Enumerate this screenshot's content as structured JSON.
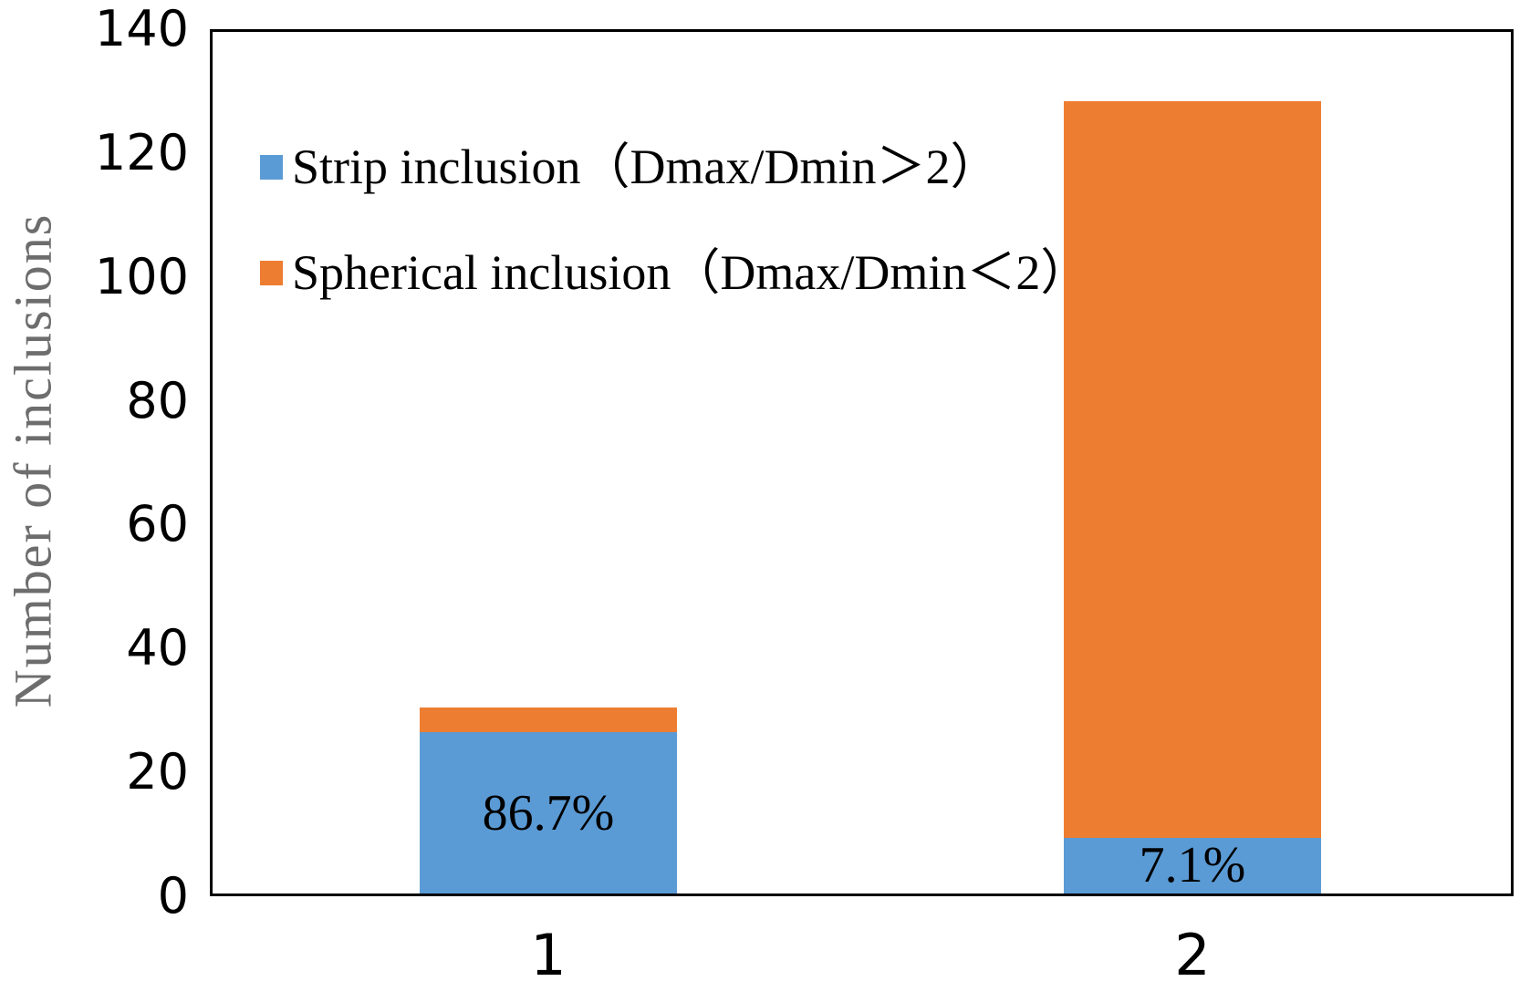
{
  "colors": {
    "series_blue": "#5B9BD5",
    "series_orange": "#ED7D31",
    "axis_line": "#000000",
    "y_title_gray": "#6d6d6d",
    "background": "#ffffff"
  },
  "y_axis": {
    "title": "Number of inclusions",
    "ticks": [
      "0",
      "20",
      "40",
      "60",
      "80",
      "100",
      "120",
      "140"
    ],
    "min": 0,
    "max": 140
  },
  "x_axis": {
    "categories": [
      "1",
      "2"
    ]
  },
  "legend": [
    {
      "label": "Strip inclusion（Dmax/Dmin＞2）",
      "color": "#5B9BD5",
      "marker": "square-icon"
    },
    {
      "label": "Spherical inclusion（Dmax/Dmin＜2）",
      "color": "#ED7D31",
      "marker": "square-icon"
    }
  ],
  "chart_data": {
    "type": "bar",
    "stacked": true,
    "categories": [
      "1",
      "2"
    ],
    "series": [
      {
        "name": "Strip inclusion（Dmax/Dmin＞2）",
        "color": "#5B9BD5",
        "values": [
          26,
          9
        ]
      },
      {
        "name": "Spherical inclusion（Dmax/Dmin＜2）",
        "color": "#ED7D31",
        "values": [
          4,
          119
        ]
      }
    ],
    "stack_totals": [
      30,
      128
    ],
    "bar_labels": [
      "86.7%",
      "7.1%"
    ],
    "bar_label_placement": "inside bottom (blue) segment",
    "title": "",
    "xlabel": "",
    "ylabel": "Number of inclusions",
    "ylim": [
      0,
      140
    ],
    "ytick_step": 20,
    "grid": false,
    "legend_position": "upper-left inside plot"
  }
}
